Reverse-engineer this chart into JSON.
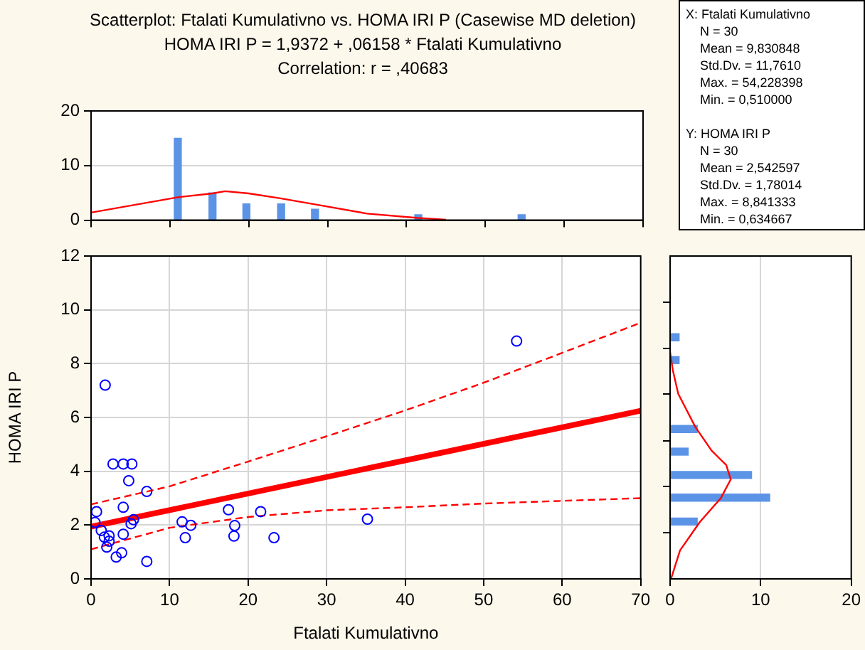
{
  "chart_data": [
    {
      "type": "bar",
      "title": "Scatterplot: Ftalati Kumulativno vs. HOMA IRI P (Casewise MD deletion)",
      "subtitle": "HOMA IRI P = 1,9372 + ,06158 * Ftalati Kumulativno",
      "annotations": [
        "Correlation: r = ,40683"
      ],
      "xlim": [
        0,
        70
      ],
      "xticks": [
        {
          "value": 0,
          "label": null
        },
        {
          "value": 10,
          "label": null
        },
        {
          "value": 20,
          "label": null
        },
        {
          "value": 30,
          "label": null
        },
        {
          "value": 40,
          "label": null
        },
        {
          "value": 50,
          "label": null
        },
        {
          "value": 60,
          "label": null
        },
        {
          "value": 70,
          "label": null
        }
      ],
      "ylim": [
        0,
        20
      ],
      "yticks": [
        0,
        10,
        20
      ],
      "grid": "y",
      "tick_labels": "y",
      "series": [
        {
          "type": "bar",
          "color": "#5b93e6",
          "x": [
            11,
            15.4,
            19.7,
            24.1,
            28.4,
            41.5,
            54.6
          ],
          "values": [
            15,
            5,
            3,
            3,
            2,
            1,
            1
          ]
        },
        {
          "type": "line",
          "color": "#ff0000",
          "marker": "none",
          "line_style": "solid",
          "x": [
            0,
            11,
            15.4,
            17,
            20,
            24,
            28.4,
            35,
            41.5,
            45
          ],
          "values": [
            1.4,
            4.2,
            4.9,
            5.3,
            4.9,
            4.0,
            2.9,
            1.2,
            0.4,
            0.1
          ]
        }
      ]
    },
    {
      "type": "scatter",
      "xlabel": "Ftalati Kumulativno",
      "ylabel": "HOMA IRI P",
      "xlim": [
        0,
        70
      ],
      "xticks": [
        0,
        10,
        20,
        30,
        40,
        50,
        60,
        70
      ],
      "ylim": [
        0,
        12
      ],
      "yticks": [
        0,
        2,
        4,
        6,
        8,
        10,
        12
      ],
      "grid": true,
      "series": [
        {
          "type": "scatter",
          "color": "#0000ff",
          "marker": "circle",
          "x": [
            1.8,
            2.8,
            4.1,
            5.2,
            4.8,
            7.1,
            0.7,
            4.1,
            1.3,
            1.7,
            2.3,
            2.3,
            2.0,
            3.2,
            3.9,
            4.1,
            5.1,
            5.4,
            7.1,
            11.6,
            12.0,
            12.7,
            17.5,
            18.3,
            18.2,
            21.6,
            23.3,
            35.2,
            54.2,
            0.5
          ],
          "values": [
            7.2,
            4.27,
            4.27,
            4.27,
            3.65,
            3.25,
            2.5,
            2.66,
            1.8,
            1.55,
            1.6,
            1.4,
            1.18,
            0.81,
            0.97,
            1.66,
            2.05,
            2.2,
            0.65,
            2.12,
            1.53,
            1.99,
            2.57,
            1.98,
            1.59,
            2.5,
            1.53,
            2.22,
            8.84,
            2.1
          ]
        },
        {
          "type": "line",
          "color": "#ff0000",
          "marker": "none",
          "line_style": "solid",
          "x": [
            0,
            70
          ],
          "values": [
            1.94,
            6.25
          ]
        },
        {
          "type": "line",
          "color": "#ff0000",
          "marker": "none",
          "line_style": "dashed",
          "x": [
            0,
            10,
            20,
            30,
            40,
            50,
            60,
            70
          ],
          "values": [
            2.77,
            3.44,
            4.36,
            5.3,
            6.26,
            7.29,
            8.4,
            9.52
          ]
        },
        {
          "type": "line",
          "color": "#ff0000",
          "marker": "none",
          "line_style": "dashed",
          "x": [
            0,
            10,
            20,
            30,
            40,
            50,
            60,
            70
          ],
          "values": [
            1.1,
            1.9,
            2.3,
            2.55,
            2.66,
            2.8,
            2.9,
            3.0
          ]
        }
      ]
    },
    {
      "type": "bar",
      "orientation": "horizontal",
      "xlim": [
        0,
        20
      ],
      "xticks": [
        0,
        10,
        20
      ],
      "ylim": [
        0,
        12
      ],
      "yticks": [
        {
          "value": 1.71,
          "label": null
        },
        {
          "value": 3.43,
          "label": null
        },
        {
          "value": 5.14,
          "label": null
        },
        {
          "value": 6.86,
          "label": null
        },
        {
          "value": 8.57,
          "label": null
        },
        {
          "value": 10.29,
          "label": null
        }
      ],
      "grid": "x",
      "tick_labels": "x",
      "series": [
        {
          "type": "bar",
          "color": "#5b93e6",
          "x": [
            2.13,
            3.02,
            3.86,
            4.73,
            5.57,
            8.13,
            8.98
          ],
          "values": [
            3,
            11,
            9,
            2,
            3,
            1,
            1
          ]
        },
        {
          "type": "line",
          "color": "#ff0000",
          "marker": "none",
          "line_style": "solid",
          "x": [
            0,
            1.06,
            2.12,
            3.0,
            3.7,
            4.23,
            4.76,
            5.64,
            6.88,
            7.76,
            8.43
          ],
          "values": [
            0.1,
            1.1,
            3.3,
            5.6,
            6.7,
            6.2,
            4.6,
            2.8,
            0.9,
            0.3,
            0
          ]
        }
      ]
    },
    {
      "type": "other",
      "annotations": [
        "X:  Ftalati Kumulativno",
        "N = 30",
        "Mean = 9,830848",
        "Std.Dv. = 11,7610",
        "Max. = 54,228398",
        "Min. = 0,510000",
        "Y:  HOMA IRI P",
        "N = 30",
        "Mean = 2,542597",
        "Std.Dv. = 1,78014",
        "Max. = 8,841333",
        "Min. = 0,634667"
      ]
    }
  ]
}
